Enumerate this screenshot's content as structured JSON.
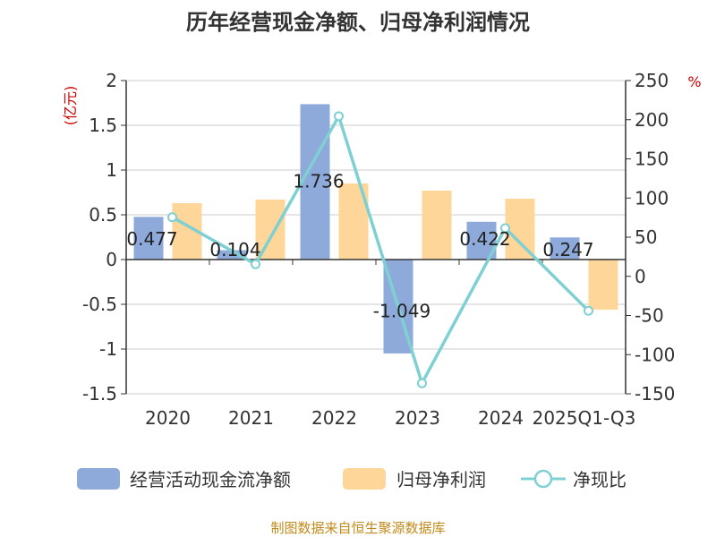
{
  "chart_data": {
    "type": "bar",
    "title": "历年经营现金净额、归母净利润情况",
    "categories": [
      "2020",
      "2021",
      "2022",
      "2023",
      "2024",
      "2025Q1-Q3"
    ],
    "left_axis": {
      "unit": "(亿元)",
      "ylim": [
        -1.5,
        2
      ],
      "ticks": [
        "2",
        "1.5",
        "1",
        "0.5",
        "0",
        "-0.5",
        "-1",
        "-1.5"
      ]
    },
    "right_axis": {
      "unit": "%",
      "ylim": [
        -150,
        250
      ],
      "ticks": [
        "250",
        "200",
        "150",
        "100",
        "50",
        "0",
        "-50",
        "-100",
        "-150"
      ]
    },
    "series": [
      {
        "name": "经营活动现金流净额",
        "type": "bar",
        "axis": "left",
        "color": "#8eaadb",
        "values": [
          0.477,
          0.104,
          1.736,
          -1.049,
          0.422,
          0.247
        ],
        "labels": [
          "0.477",
          "0.104",
          "1.736",
          "-1.049",
          "0.422",
          "0.247"
        ]
      },
      {
        "name": "归母净利润",
        "type": "bar",
        "axis": "left",
        "color": "#ffd699",
        "values": [
          0.63,
          0.67,
          0.85,
          0.77,
          0.68,
          -0.56
        ]
      },
      {
        "name": "净现比",
        "type": "line",
        "axis": "right",
        "color": "#7fd0d3",
        "values": [
          75.5,
          15.5,
          204.5,
          -136.5,
          61.5,
          -44
        ]
      }
    ],
    "source": "制图数据来自恒生聚源数据库"
  }
}
